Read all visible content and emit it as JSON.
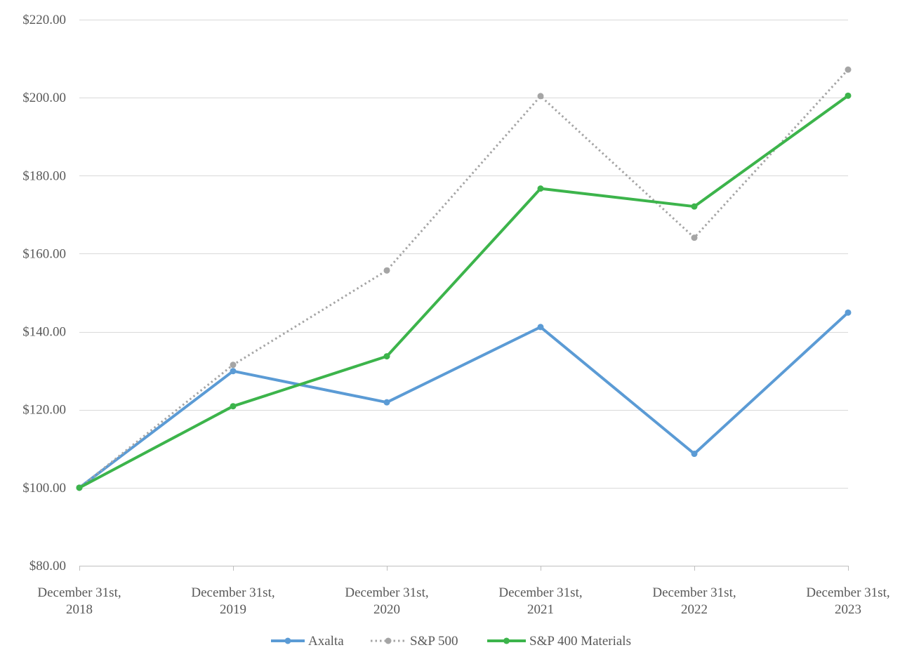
{
  "chart_data": {
    "type": "line",
    "title": "",
    "xlabel": "",
    "ylabel": "",
    "categories": [
      [
        "December 31st,",
        "2018"
      ],
      [
        "December 31st,",
        "2019"
      ],
      [
        "December 31st,",
        "2020"
      ],
      [
        "December 31st,",
        "2021"
      ],
      [
        "December 31st,",
        "2022"
      ],
      [
        "December 31st,",
        "2023"
      ]
    ],
    "ylim": [
      80,
      220
    ],
    "yticks": [
      80,
      100,
      120,
      140,
      160,
      180,
      200,
      220
    ],
    "ytick_labels": [
      "$80.00",
      "$100.00",
      "$120.00",
      "$140.00",
      "$160.00",
      "$180.00",
      "$200.00",
      "$220.00"
    ],
    "grid": true,
    "legend_position": "bottom",
    "series": [
      {
        "name": "Axalta",
        "color": "#5b9bd5",
        "style": "solid",
        "values": [
          100.0,
          129.9,
          121.9,
          141.2,
          108.7,
          144.9
        ]
      },
      {
        "name": "S&P 500",
        "color": "#a5a5a5",
        "style": "dotted",
        "values": [
          100.0,
          131.5,
          155.7,
          200.4,
          164.1,
          207.2
        ]
      },
      {
        "name": "S&P 400 Materials",
        "color": "#3cb44b",
        "style": "solid",
        "values": [
          100.0,
          120.9,
          133.7,
          176.7,
          172.1,
          200.5
        ]
      }
    ]
  }
}
